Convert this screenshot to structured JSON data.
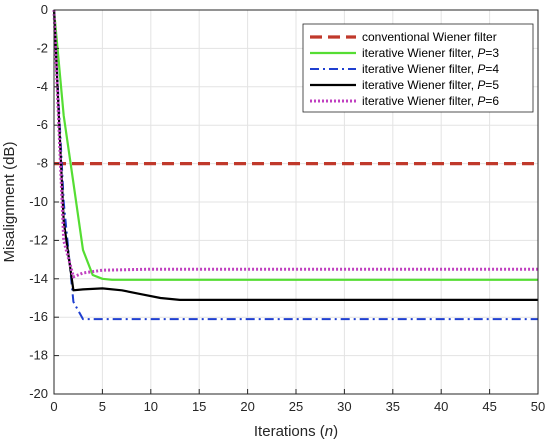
{
  "chart_data": {
    "type": "line",
    "xlabel_text": "Iterations (",
    "xlabel_var": "n",
    "xlabel_close": ")",
    "ylabel": "Misalignment (dB)",
    "xlim": [
      0,
      50
    ],
    "ylim": [
      -20,
      0
    ],
    "xticks": [
      "0",
      "5",
      "10",
      "15",
      "20",
      "25",
      "30",
      "35",
      "40",
      "45",
      "50"
    ],
    "yticks": [
      "0",
      "-2",
      "-4",
      "-6",
      "-8",
      "-10",
      "-12",
      "-14",
      "-16",
      "-18",
      "-20"
    ],
    "grid": true,
    "legend_position": "top-right",
    "series": [
      {
        "name": "conventional Wiener filter",
        "label_suffix": "",
        "color": "#c0392b",
        "style": "dashed",
        "x": [
          0,
          50
        ],
        "y": [
          -8,
          -8
        ]
      },
      {
        "name": "iterative Wiener filter, ",
        "label_suffix": "=3",
        "color": "#55dd33",
        "style": "solid",
        "x": [
          0,
          1,
          2,
          3,
          4,
          5,
          6,
          10,
          20,
          30,
          40,
          50
        ],
        "y": [
          0,
          -5.5,
          -9,
          -12.5,
          -13.8,
          -14.0,
          -14.05,
          -14.05,
          -14.05,
          -14.05,
          -14.05,
          -14.05
        ]
      },
      {
        "name": "iterative Wiener filter, ",
        "label_suffix": "=4",
        "color": "#1f3fd0",
        "style": "dashdot",
        "x": [
          0,
          1,
          2,
          3,
          4,
          5,
          10,
          20,
          30,
          40,
          50
        ],
        "y": [
          0,
          -10,
          -15.2,
          -16.1,
          -16.1,
          -16.1,
          -16.1,
          -16.1,
          -16.1,
          -16.1,
          -16.1
        ]
      },
      {
        "name": "iterative Wiener filter, ",
        "label_suffix": "=5",
        "color": "#000000",
        "style": "solid",
        "x": [
          0,
          1,
          2,
          3,
          5,
          7,
          9,
          11,
          13,
          15,
          20,
          30,
          40,
          50
        ],
        "y": [
          0,
          -11,
          -14.6,
          -14.55,
          -14.5,
          -14.6,
          -14.8,
          -15.0,
          -15.1,
          -15.1,
          -15.1,
          -15.1,
          -15.1,
          -15.1
        ]
      },
      {
        "name": "iterative Wiener filter, ",
        "label_suffix": "=6",
        "color": "#c040c0",
        "style": "dotted",
        "x": [
          0,
          1,
          2,
          3,
          5,
          10,
          20,
          30,
          40,
          50
        ],
        "y": [
          0,
          -12,
          -13.9,
          -13.7,
          -13.55,
          -13.5,
          -13.5,
          -13.5,
          -13.5,
          -13.5
        ]
      }
    ]
  },
  "legend_var": "P"
}
